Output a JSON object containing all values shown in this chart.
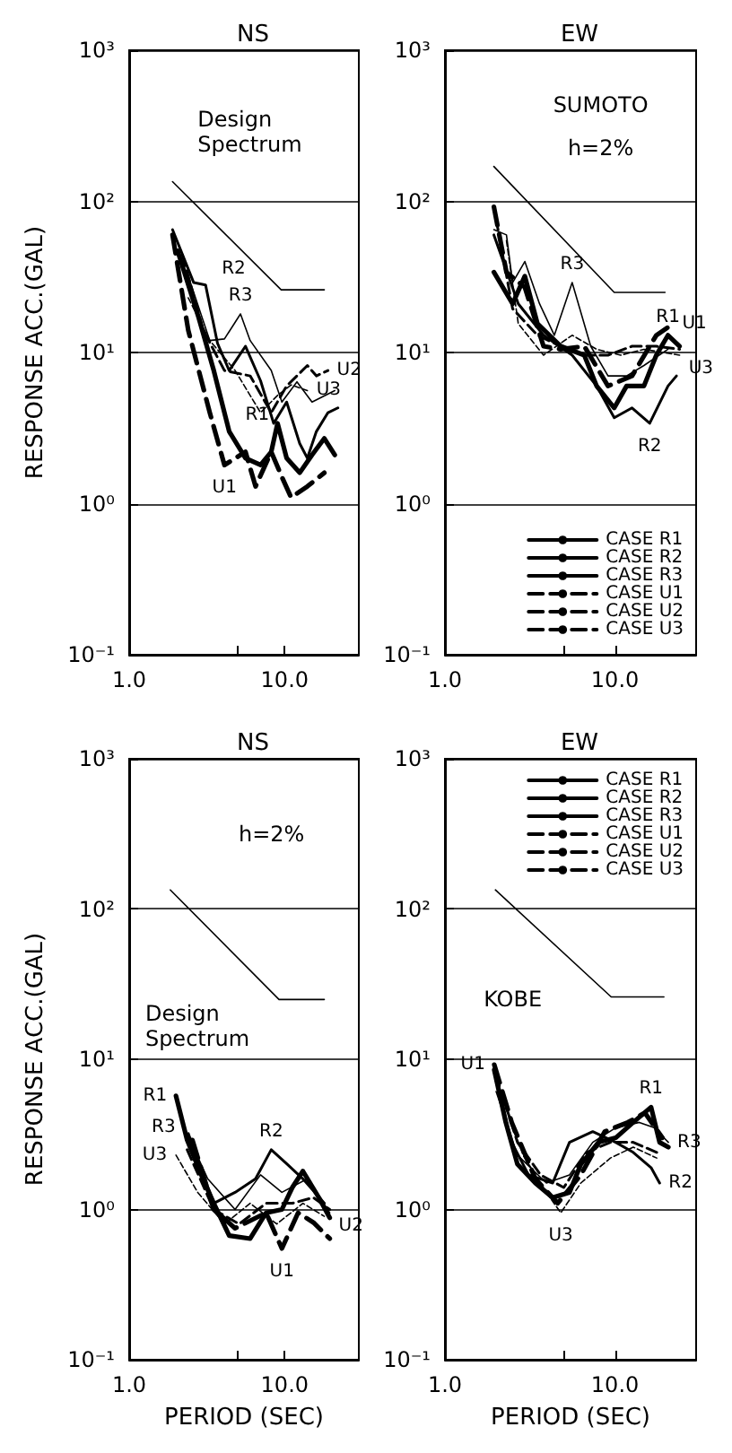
{
  "chart_data": [
    {
      "type": "line",
      "title": "NS",
      "ylabel": "RESPONSE ACC.(GAL)",
      "log": "xy",
      "grid": "y",
      "marker": "none",
      "xlim": [
        1,
        30
      ],
      "ylim": [
        0.1,
        1000
      ],
      "xticks": [
        {
          "value": 1,
          "label": "1.0"
        },
        {
          "value": 5,
          "label": null
        },
        {
          "value": 10,
          "label": "10.0"
        }
      ],
      "yticks": [
        {
          "value": 0.1,
          "label": "10⁻¹"
        },
        {
          "value": 1,
          "label": "10⁰"
        },
        {
          "value": 10,
          "label": "10¹"
        },
        {
          "value": 100,
          "label": "10²"
        },
        {
          "value": 1000,
          "label": "10³"
        }
      ],
      "series": [
        {
          "color": "#000000",
          "line_style": "solid",
          "x": [
            2.05,
            2.8,
            3.5,
            4.4,
            5.6,
            7,
            8.2,
            9,
            10.3,
            12.5,
            15,
            18,
            21
          ],
          "values": [
            47,
            17,
            7.6,
            3,
            2,
            1.8,
            2.2,
            3.4,
            2,
            1.6,
            2.1,
            2.7,
            2.1
          ]
        },
        {
          "color": "#000000",
          "line_style": "solid",
          "x": [
            1.9,
            2.6,
            3.1,
            3.7,
            4.4,
            5.6,
            7,
            8.5,
            10.3,
            12.5,
            14,
            16,
            19,
            22
          ],
          "values": [
            65,
            29,
            28,
            11.5,
            7.6,
            11,
            6.5,
            3.4,
            4.7,
            2.5,
            2,
            3,
            4,
            4.3
          ]
        },
        {
          "color": "#000000",
          "line_style": "solid",
          "x": [
            2.4,
            3.3,
            4.1,
            5.2,
            6,
            8.2,
            9.6,
            12,
            15,
            21
          ],
          "values": [
            32,
            12,
            12.3,
            18,
            12,
            7.6,
            4.7,
            6.4,
            4.7,
            5.6
          ]
        },
        {
          "color": "#000000",
          "line_style": "dashed",
          "x": [
            1.9,
            2.4,
            3.3,
            4.1,
            5.6,
            6.5,
            8.2,
            9.6,
            11,
            14,
            18
          ],
          "values": [
            60,
            14,
            4,
            1.8,
            2.2,
            1.3,
            2.2,
            1.5,
            1.1,
            1.3,
            1.6
          ]
        },
        {
          "color": "#000000",
          "line_style": "dashed",
          "x": [
            2.2,
            3,
            4.1,
            6,
            8.2,
            10.3,
            14,
            16,
            19
          ],
          "values": [
            44,
            14,
            7.6,
            7,
            4,
            6,
            8.2,
            7,
            7.6
          ]
        },
        {
          "color": "#000000",
          "line_style": "dashed",
          "x": [
            2.4,
            3.3,
            4.8,
            7,
            9,
            11,
            14
          ],
          "values": [
            23,
            12,
            7.6,
            4,
            5.2,
            6.1,
            5.6
          ]
        },
        {
          "name": "Design Spectrum",
          "color": "#000000",
          "line_style": "solid",
          "x": [
            1.9,
            9.5,
            18
          ],
          "values": [
            135,
            26,
            26
          ]
        }
      ],
      "annotations": [
        {
          "text": "R2",
          "x": 3.1,
          "y": 28
        },
        {
          "text": "R3",
          "x": 5.2,
          "y": 18
        },
        {
          "text": "R1",
          "x": 4.4,
          "y": 3
        },
        {
          "text": "U1",
          "x": 4.1,
          "y": 1.8
        },
        {
          "text": "U2",
          "x": 19,
          "y": 7.6
        },
        {
          "text": "U3",
          "x": 14,
          "y": 5.6
        }
      ]
    },
    {
      "type": "line",
      "title": "EW",
      "log": "xy",
      "grid": "y",
      "marker": "none",
      "legend": "bottom right",
      "xlim": [
        1,
        30
      ],
      "ylim": [
        0.1,
        1000
      ],
      "xticks": [
        {
          "value": 1,
          "label": "1.0"
        },
        {
          "value": 5,
          "label": null
        },
        {
          "value": 10,
          "label": "10.0"
        }
      ],
      "yticks": [
        {
          "value": 0.1,
          "label": "10⁻¹"
        },
        {
          "value": 1,
          "label": "10⁰"
        },
        {
          "value": 10,
          "label": "10¹"
        },
        {
          "value": 100,
          "label": "10²"
        },
        {
          "value": 1000,
          "label": "10³"
        }
      ],
      "series": [
        {
          "name": "CASE R1",
          "color": "#000000",
          "line_style": "solid",
          "x": [
            1.94,
            2.5,
            2.95,
            3.5,
            4.8,
            6.6,
            7.8,
            9.9,
            11.7,
            14.8,
            17.5,
            20.5,
            24
          ],
          "values": [
            34,
            21,
            32,
            15.5,
            11,
            9.6,
            6,
            4.3,
            6,
            6,
            9.6,
            13,
            11
          ]
        },
        {
          "name": "CASE R2",
          "color": "#000000",
          "line_style": "solid",
          "x": [
            1.94,
            2.7,
            3.8,
            5.6,
            7.8,
            9.9,
            12.6,
            16,
            20.5,
            23
          ],
          "values": [
            60,
            21,
            13,
            9.6,
            6,
            3.7,
            4.3,
            3.4,
            6,
            7
          ]
        },
        {
          "name": "CASE R3",
          "color": "#000000",
          "line_style": "solid",
          "x": [
            1.94,
            2.3,
            2.5,
            2.95,
            3.6,
            4.4,
            5.6,
            7.2,
            9.1,
            11.7,
            14.8,
            20.5
          ],
          "values": [
            65,
            60,
            29,
            40,
            21,
            13,
            29,
            11,
            7,
            7,
            8.2,
            10.5
          ]
        },
        {
          "name": "CASE U1",
          "color": "#000000",
          "line_style": "dashed",
          "x": [
            1.94,
            2.3,
            2.95,
            3.8,
            4.8,
            6.6,
            9.1,
            12.6,
            17.5,
            22
          ],
          "values": [
            92,
            34,
            27,
            11,
            10.5,
            11,
            6,
            7,
            13,
            15.5
          ]
        },
        {
          "name": "CASE U2",
          "color": "#000000",
          "line_style": "dashed",
          "x": [
            2,
            2.5,
            3.5,
            4.8,
            6.6,
            9.1,
            12.6,
            17.5,
            24
          ],
          "values": [
            76,
            19.5,
            13,
            11,
            9.6,
            9.6,
            11,
            11,
            10.5
          ]
        },
        {
          "name": "CASE U3",
          "color": "#000000",
          "line_style": "dashed",
          "x": [
            2.3,
            2.7,
            3.8,
            5.6,
            7.8,
            10.8,
            14.8,
            24
          ],
          "values": [
            55,
            15.5,
            9.6,
            13,
            10.5,
            9.6,
            10.5,
            9.6
          ]
        },
        {
          "color": "#000000",
          "line_style": "solid",
          "x": [
            1.94,
            9.9,
            19.7
          ],
          "values": [
            170,
            25,
            25
          ]
        }
      ],
      "annotations": [
        "SUMOTO",
        "h=2%",
        {
          "text": "R3",
          "x": 5.6,
          "y": 29
        },
        {
          "text": "R1",
          "x": 20.5,
          "y": 13
        },
        {
          "text": "U1",
          "x": 22,
          "y": 15.5
        },
        {
          "text": "U3",
          "x": 24,
          "y": 9.6
        },
        {
          "text": "R2",
          "x": 16,
          "y": 3.4
        }
      ]
    },
    {
      "type": "line",
      "title": "NS",
      "ylabel": "RESPONSE ACC.(GAL)",
      "xlabel": "PERIOD (SEC)",
      "log": "xy",
      "grid": "y",
      "marker": "none",
      "xlim": [
        1,
        30
      ],
      "ylim": [
        0.1,
        1000
      ],
      "xticks": [
        {
          "value": 1,
          "label": "1.0"
        },
        {
          "value": 5,
          "label": null
        },
        {
          "value": 10,
          "label": "10.0"
        }
      ],
      "yticks": [
        {
          "value": 0.1,
          "label": "10⁻¹"
        },
        {
          "value": 1,
          "label": "10⁰"
        },
        {
          "value": 10,
          "label": "10¹"
        },
        {
          "value": 100,
          "label": "10²"
        },
        {
          "value": 1000,
          "label": "10³"
        }
      ],
      "series": [
        {
          "color": "#000000",
          "line_style": "solid",
          "x": [
            2,
            2.36,
            2.98,
            3.5,
            4.4,
            6,
            7.6,
            9.6,
            11.2,
            13.1,
            16.6,
            19.5
          ],
          "values": [
            5.7,
            2.9,
            1.6,
            1.1,
            0.67,
            0.64,
            0.95,
            1,
            1.4,
            1.8,
            1.2,
            0.88
          ]
        },
        {
          "color": "#000000",
          "line_style": "solid",
          "x": [
            2.4,
            3.5,
            4.8,
            6.5,
            8.2,
            10.4,
            13.1,
            18
          ],
          "values": [
            3.2,
            1.1,
            1.3,
            1.6,
            2.5,
            2,
            1.6,
            1.1
          ]
        },
        {
          "color": "#000000",
          "line_style": "solid",
          "x": [
            2.27,
            3.2,
            4.8,
            7,
            9.6,
            14,
            19.5
          ],
          "values": [
            3.5,
            1.6,
            1,
            1.7,
            1.3,
            1.6,
            0.95
          ]
        },
        {
          "color": "#000000",
          "line_style": "dashed",
          "x": [
            2.55,
            3.5,
            4.8,
            7.6,
            9.6,
            12.2,
            15.3,
            19.5
          ],
          "values": [
            2.9,
            1,
            0.75,
            0.95,
            0.55,
            0.95,
            0.82,
            0.64
          ]
        },
        {
          "color": "#000000",
          "line_style": "dashed",
          "x": [
            2.36,
            3.5,
            5.1,
            7.6,
            11.2,
            15.3,
            19.5
          ],
          "values": [
            2.5,
            1,
            0.8,
            1.1,
            1.1,
            1.2,
            1
          ]
        },
        {
          "color": "#000000",
          "line_style": "dashed",
          "x": [
            2,
            2.76,
            4.1,
            6,
            8.9,
            13.1,
            18
          ],
          "values": [
            2.3,
            1.3,
            0.8,
            1.1,
            0.8,
            1.1,
            0.9
          ]
        },
        {
          "name": "Design Spectrum",
          "color": "#000000",
          "line_style": "solid",
          "x": [
            1.84,
            9.2,
            18
          ],
          "values": [
            134,
            25,
            25
          ]
        }
      ],
      "annotations": [
        "h=2%",
        {
          "text": "R1",
          "x": 2,
          "y": 5.7
        },
        {
          "text": "R3",
          "x": 2.27,
          "y": 3.5
        },
        {
          "text": "R2",
          "x": 8.2,
          "y": 2.5
        },
        {
          "text": "U3",
          "x": 2,
          "y": 2.3
        },
        {
          "text": "U1",
          "x": 9.6,
          "y": 0.55
        },
        {
          "text": "U2",
          "x": 19.5,
          "y": 1
        }
      ]
    },
    {
      "type": "line",
      "title": "EW",
      "xlabel": "PERIOD (SEC)",
      "log": "xy",
      "grid": "y",
      "marker": "none",
      "legend": "top right",
      "xlim": [
        1,
        30
      ],
      "ylim": [
        0.1,
        1000
      ],
      "xticks": [
        {
          "value": 1,
          "label": "1.0"
        },
        {
          "value": 5,
          "label": null
        },
        {
          "value": 10,
          "label": "10.0"
        }
      ],
      "yticks": [
        {
          "value": 0.1,
          "label": "10⁻¹"
        },
        {
          "value": 1,
          "label": "10⁰"
        },
        {
          "value": 10,
          "label": "10¹"
        },
        {
          "value": 100,
          "label": "10²"
        },
        {
          "value": 1000,
          "label": "10³"
        }
      ],
      "series": [
        {
          "name": "CASE R1",
          "color": "#000000",
          "line_style": "solid",
          "x": [
            1.95,
            2.28,
            2.67,
            3.4,
            4.3,
            5.4,
            6.3,
            8,
            10.1,
            12.8,
            16.3,
            18.3,
            20.6
          ],
          "values": [
            8.5,
            3.8,
            2,
            1.5,
            1.2,
            1.3,
            2,
            2.8,
            3,
            3.8,
            4.8,
            2.8,
            2.6
          ]
        },
        {
          "name": "CASE R2",
          "color": "#000000",
          "line_style": "solid",
          "x": [
            2,
            2.47,
            3.1,
            4.3,
            5.4,
            7.4,
            10.1,
            12.8,
            16.3,
            18.3
          ],
          "values": [
            7.2,
            2.8,
            1.7,
            1.5,
            2.8,
            3.3,
            2.8,
            2.4,
            1.9,
            1.5
          ]
        },
        {
          "name": "CASE R3",
          "color": "#000000",
          "line_style": "solid",
          "x": [
            2,
            2.67,
            3.95,
            5.4,
            7.4,
            10.1,
            13.9,
            17,
            20.6
          ],
          "values": [
            6.1,
            2.3,
            1.5,
            1.7,
            2.8,
            3.5,
            3.8,
            3.5,
            2.8
          ]
        },
        {
          "name": "CASE U1",
          "color": "#000000",
          "line_style": "dashed",
          "x": [
            1.95,
            2.47,
            3.4,
            4.6,
            6.3,
            8.7,
            11.9,
            15,
            19
          ],
          "values": [
            9.2,
            3.8,
            1.6,
            1.1,
            1.7,
            3.3,
            3.8,
            4.4,
            3
          ]
        },
        {
          "name": "CASE U2",
          "color": "#000000",
          "line_style": "dashed",
          "x": [
            2,
            2.67,
            3.65,
            5,
            6.8,
            9.4,
            12.8,
            17.6
          ],
          "values": [
            7.8,
            2.8,
            1.7,
            1.4,
            2.4,
            2.8,
            2.8,
            2.4
          ]
        },
        {
          "name": "CASE U3",
          "color": "#000000",
          "line_style": "dashed",
          "x": [
            2.1,
            2.88,
            3.95,
            4.8,
            6.3,
            9.4,
            12.8,
            17.6
          ],
          "values": [
            6.1,
            2.3,
            1.3,
            0.95,
            1.5,
            2.2,
            2.6,
            2.2
          ]
        },
        {
          "color": "#000000",
          "line_style": "solid",
          "x": [
            1.98,
            9.5,
            19.4
          ],
          "values": [
            134,
            26,
            26
          ]
        }
      ],
      "annotations": [
        "KOBE",
        {
          "text": "U1",
          "x": 1.95,
          "y": 9.2
        },
        {
          "text": "R1",
          "x": 16.3,
          "y": 4.8
        },
        {
          "text": "R3",
          "x": 20.6,
          "y": 2.8
        },
        {
          "text": "R2",
          "x": 18.3,
          "y": 1.5
        },
        {
          "text": "U3",
          "x": 4.8,
          "y": 0.95
        }
      ]
    }
  ]
}
